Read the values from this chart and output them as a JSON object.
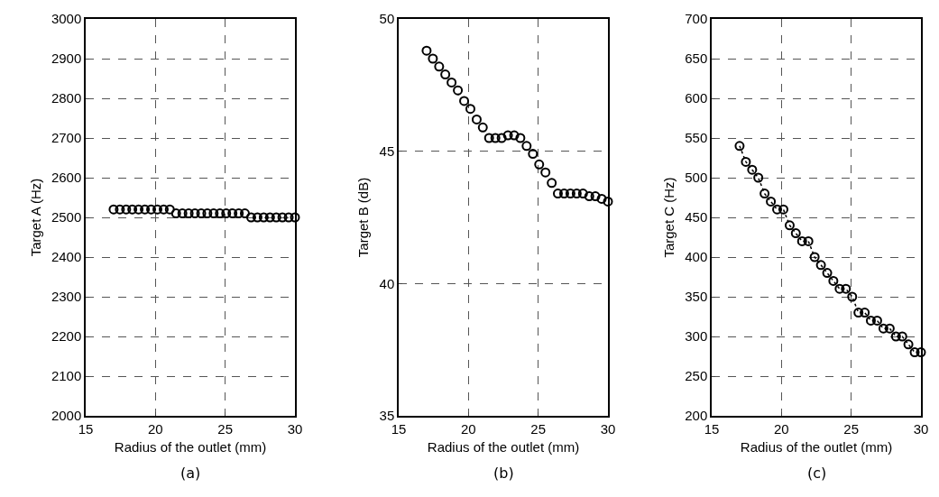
{
  "chart_data": [
    {
      "type": "scatter",
      "xlabel": "Radius of the outlet (mm)",
      "ylabel": "Target A (Hz)",
      "annotations": [
        "(a)"
      ],
      "color": "#000000",
      "marker": "circle",
      "grid": true,
      "xlim": [
        15,
        30
      ],
      "xticks": [
        15,
        20,
        25,
        30
      ],
      "ylim": [
        2000,
        3000
      ],
      "yticks": [
        2000,
        2100,
        2200,
        2300,
        2400,
        2500,
        2600,
        2700,
        2800,
        2900,
        3000
      ],
      "x": [
        17,
        17.45,
        17.9,
        18.34,
        18.79,
        19.24,
        19.69,
        20.14,
        20.59,
        21.03,
        21.48,
        21.93,
        22.38,
        22.83,
        23.28,
        23.72,
        24.17,
        24.62,
        25.07,
        25.52,
        25.97,
        26.41,
        26.86,
        27.31,
        27.76,
        28.21,
        28.66,
        29.1,
        29.55,
        30
      ],
      "values": [
        2520,
        2520,
        2520,
        2520,
        2520,
        2520,
        2520,
        2520,
        2520,
        2520,
        2510,
        2510,
        2510,
        2510,
        2510,
        2510,
        2510,
        2510,
        2510,
        2510,
        2510,
        2510,
        2500,
        2500,
        2500,
        2500,
        2500,
        2500,
        2500,
        2500
      ]
    },
    {
      "type": "scatter",
      "xlabel": "Radius of the outlet (mm)",
      "ylabel": "Target B (dB)",
      "annotations": [
        "(b)"
      ],
      "color": "#000000",
      "marker": "circle",
      "grid": true,
      "xlim": [
        15,
        30
      ],
      "xticks": [
        15,
        20,
        25,
        30
      ],
      "ylim": [
        35,
        50
      ],
      "yticks": [
        35,
        40,
        45,
        50
      ],
      "x": [
        17,
        17.45,
        17.9,
        18.34,
        18.79,
        19.24,
        19.69,
        20.14,
        20.59,
        21.03,
        21.48,
        21.93,
        22.38,
        22.83,
        23.28,
        23.72,
        24.17,
        24.62,
        25.07,
        25.52,
        25.97,
        26.41,
        26.86,
        27.31,
        27.76,
        28.21,
        28.66,
        29.1,
        29.55,
        30
      ],
      "values": [
        48.8,
        48.5,
        48.2,
        47.9,
        47.6,
        47.3,
        46.9,
        46.6,
        46.2,
        45.9,
        45.5,
        45.5,
        45.5,
        45.6,
        45.6,
        45.5,
        45.2,
        44.9,
        44.5,
        44.2,
        43.8,
        43.4,
        43.4,
        43.4,
        43.4,
        43.4,
        43.3,
        43.3,
        43.2,
        43.1
      ]
    },
    {
      "type": "line",
      "xlabel": "Radius of the outlet (mm)",
      "ylabel": "Target C (Hz)",
      "annotations": [
        "(c)"
      ],
      "color": "#000000",
      "marker": "circle",
      "line_style": "dotted",
      "grid": true,
      "xlim": [
        15,
        30
      ],
      "xticks": [
        15,
        20,
        25,
        30
      ],
      "ylim": [
        200,
        700
      ],
      "yticks": [
        200,
        250,
        300,
        350,
        400,
        450,
        500,
        550,
        600,
        650,
        700
      ],
      "x": [
        17,
        17.45,
        17.9,
        18.34,
        18.79,
        19.24,
        19.69,
        20.14,
        20.59,
        21.03,
        21.48,
        21.93,
        22.38,
        22.83,
        23.28,
        23.72,
        24.17,
        24.62,
        25.07,
        25.52,
        25.97,
        26.41,
        26.86,
        27.31,
        27.76,
        28.21,
        28.66,
        29.1,
        29.55,
        30
      ],
      "values": [
        540,
        520,
        510,
        500,
        480,
        470,
        460,
        460,
        440,
        430,
        420,
        420,
        400,
        390,
        380,
        370,
        360,
        360,
        350,
        330,
        330,
        320,
        320,
        310,
        310,
        300,
        300,
        290,
        280,
        280
      ]
    }
  ]
}
